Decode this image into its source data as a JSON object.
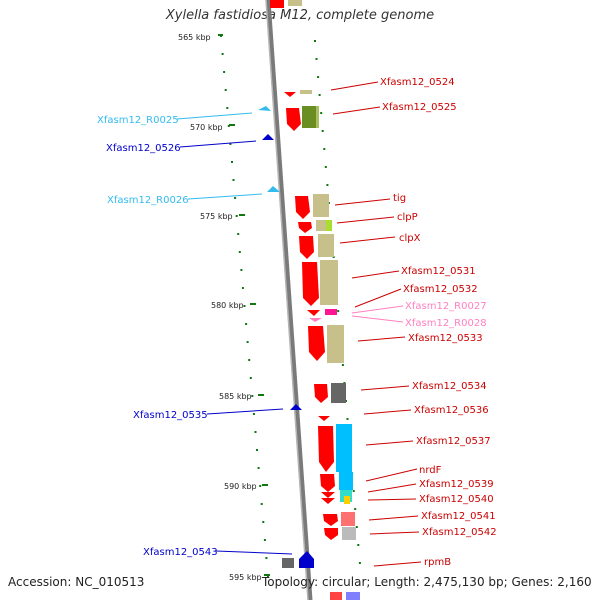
{
  "title": "Xylella fastidiosa M12, complete genome",
  "footer": {
    "accession": "Accession: NC_010513",
    "summary": "Topology: circular; Length: 2,475,130 bp; Genes: 2,160"
  },
  "colors": {
    "forward_cds": "#ff0000",
    "forward_cds_alt": "#ff5a5a",
    "rrna_blue": "#2f9ad8",
    "trna_cyan": "#33bbee",
    "dark_blue": "#0000cc",
    "pink": "#ff80c0",
    "olive": "#9aa04e",
    "khaki": "#c8c08a",
    "green": "#66aa22",
    "axis_grey": "#999999",
    "tick_green": "#117711"
  },
  "scale_labels": [
    "565 kbp",
    "570 kbp",
    "575 kbp",
    "580 kbp",
    "585 kbp",
    "590 kbp",
    "595 kbp"
  ],
  "features": [
    {
      "label": "Xfasm12_0524",
      "color": "#cc0000"
    },
    {
      "label": "Xfasm12_0525",
      "color": "#cc0000"
    },
    {
      "label": "Xfasm12_R0025",
      "color": "#33bbee"
    },
    {
      "label": "Xfasm12_0526",
      "color": "#0000cc"
    },
    {
      "label": "Xfasm12_R0026",
      "color": "#33bbee"
    },
    {
      "label": "tig",
      "color": "#cc0000"
    },
    {
      "label": "clpP",
      "color": "#cc0000"
    },
    {
      "label": "clpX",
      "color": "#cc0000"
    },
    {
      "label": "Xfasm12_0531",
      "color": "#cc0000"
    },
    {
      "label": "Xfasm12_0532",
      "color": "#cc0000"
    },
    {
      "label": "Xfasm12_R0027",
      "color": "#ff80c0"
    },
    {
      "label": "Xfasm12_R0028",
      "color": "#ff80c0"
    },
    {
      "label": "Xfasm12_0533",
      "color": "#cc0000"
    },
    {
      "label": "Xfasm12_0534",
      "color": "#cc0000"
    },
    {
      "label": "Xfasm12_0535",
      "color": "#0000cc"
    },
    {
      "label": "Xfasm12_0536",
      "color": "#cc0000"
    },
    {
      "label": "Xfasm12_0537",
      "color": "#cc0000"
    },
    {
      "label": "nrdF",
      "color": "#cc0000"
    },
    {
      "label": "Xfasm12_0539",
      "color": "#cc0000"
    },
    {
      "label": "Xfasm12_0540",
      "color": "#cc0000"
    },
    {
      "label": "Xfasm12_0541",
      "color": "#cc0000"
    },
    {
      "label": "Xfasm12_0542",
      "color": "#cc0000"
    },
    {
      "label": "Xfasm12_0543",
      "color": "#0000cc"
    },
    {
      "label": "rpmB",
      "color": "#cc0000"
    }
  ]
}
